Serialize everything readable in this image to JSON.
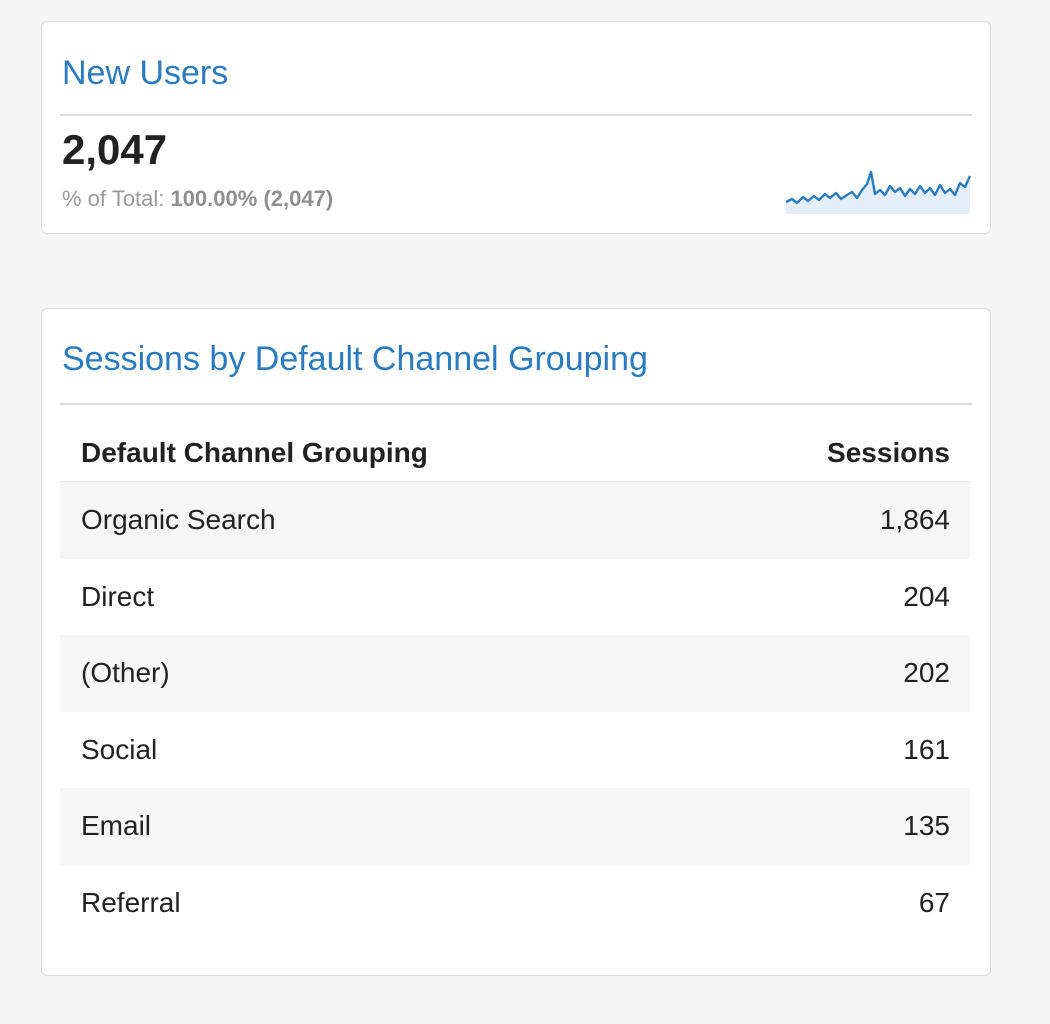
{
  "new_users_card": {
    "title": "New Users",
    "value": "2,047",
    "pct_label": "% of Total:",
    "pct_value": "100.00%",
    "pct_total": "(2,047)",
    "sparkline_color": "#2a7bbf"
  },
  "sessions_card": {
    "title": "Sessions by Default Channel Grouping",
    "columns": [
      "Default Channel Grouping",
      "Sessions"
    ],
    "rows": [
      {
        "channel": "Organic Search",
        "sessions": "1,864"
      },
      {
        "channel": "Direct",
        "sessions": "204"
      },
      {
        "channel": "(Other)",
        "sessions": "202"
      },
      {
        "channel": "Social",
        "sessions": "161"
      },
      {
        "channel": "Email",
        "sessions": "135"
      },
      {
        "channel": "Referral",
        "sessions": "67"
      }
    ]
  },
  "colors": {
    "accent": "#2a7bbf",
    "background": "#f5f5f5",
    "card": "#ffffff",
    "row_alt": "#f6f6f6"
  }
}
